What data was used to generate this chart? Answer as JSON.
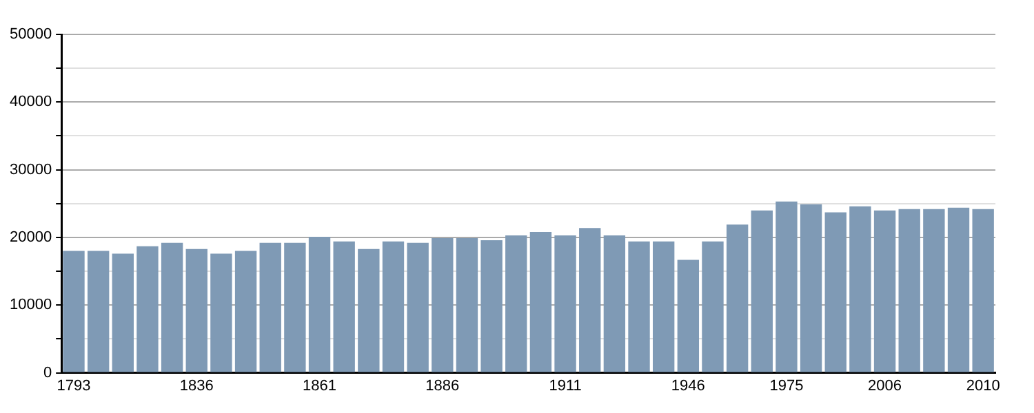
{
  "chart_data": {
    "type": "bar",
    "categories": [
      "1793",
      null,
      null,
      null,
      null,
      "1836",
      null,
      null,
      null,
      null,
      "1861",
      null,
      null,
      null,
      null,
      "1886",
      null,
      null,
      null,
      null,
      "1911",
      null,
      null,
      null,
      null,
      "1946",
      null,
      null,
      null,
      "1975",
      null,
      null,
      null,
      "2006",
      null,
      null,
      null,
      "2010"
    ],
    "values": [
      18000,
      18000,
      17600,
      18700,
      19200,
      18300,
      17600,
      18000,
      19200,
      19200,
      20100,
      19400,
      18300,
      19400,
      19200,
      19900,
      19900,
      19600,
      20300,
      20800,
      20300,
      21400,
      20300,
      19400,
      19400,
      16700,
      19400,
      21900,
      24000,
      25300,
      24900,
      23700,
      24600,
      24000,
      24200,
      24200,
      24400,
      24200
    ],
    "color": "#7f9ab5",
    "ylim": [
      0,
      50000
    ],
    "yticks": [
      0,
      {
        "value": 5000,
        "label": null
      },
      10000,
      {
        "value": 15000,
        "label": null
      },
      20000,
      {
        "value": 25000,
        "label": null
      },
      30000,
      {
        "value": 35000,
        "label": null
      },
      40000,
      {
        "value": 45000,
        "label": null
      },
      50000
    ],
    "grid": "y"
  }
}
